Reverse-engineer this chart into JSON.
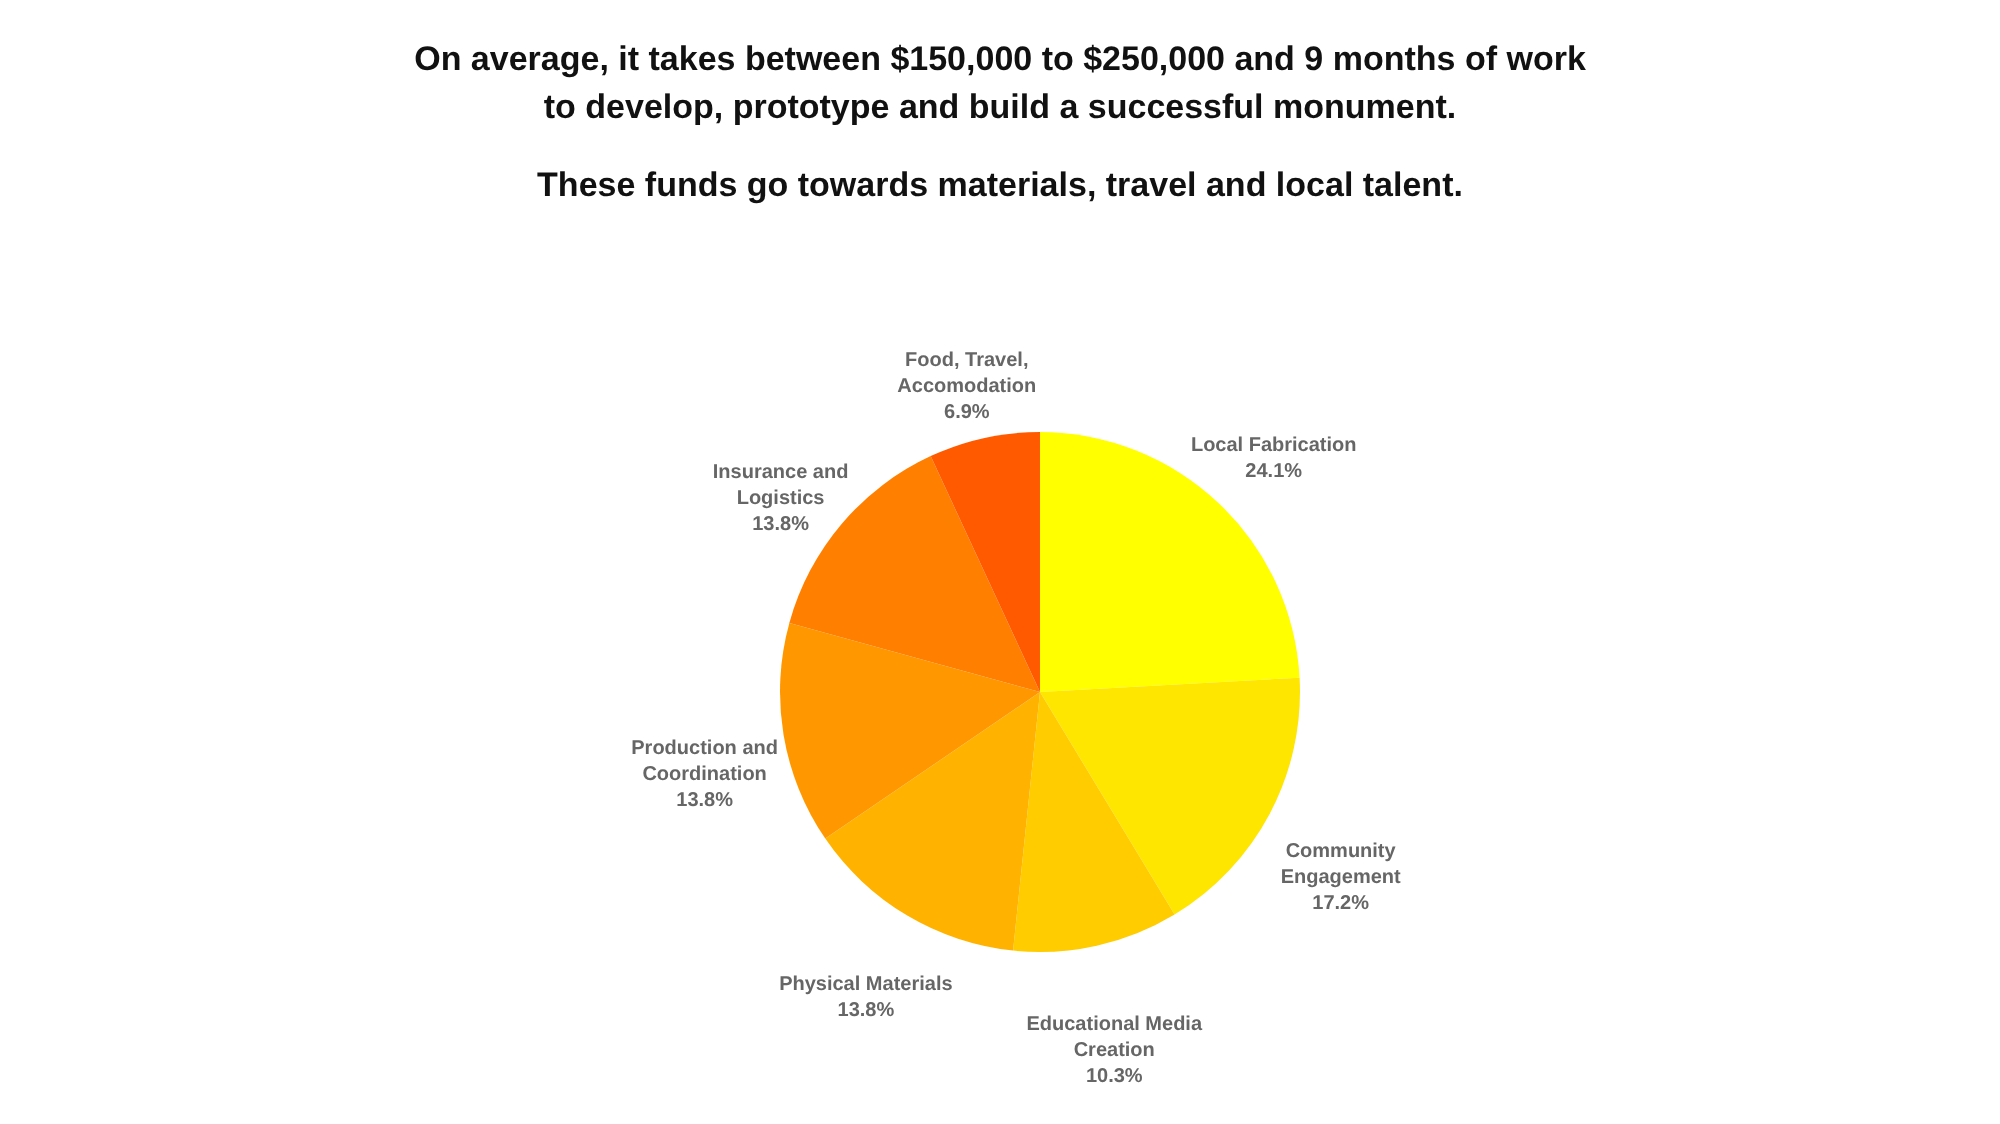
{
  "chart_data": {
    "type": "pie",
    "title": [
      "On average, it takes between $150,000 to $250,000 and 9 months of work",
      "to develop, prototype and build a successful monument."
    ],
    "subtitle": "These funds go towards materials, travel and local talent.",
    "categories": [
      "Local Fabrication",
      "Community Engagement",
      "Educational Media Creation",
      "Physical Materials",
      "Production and Coordination",
      "Insurance and Logistics",
      "Food, Travel, Accomodation"
    ],
    "values": [
      24.1,
      17.2,
      10.3,
      13.8,
      13.8,
      13.8,
      6.9
    ],
    "value_labels": [
      "24.1%",
      "17.2%",
      "10.3%",
      "13.8%",
      "13.8%",
      "13.8%",
      "6.9%"
    ],
    "colors": [
      "#ffff00",
      "#ffe600",
      "#ffcc00",
      "#ffb300",
      "#ff9800",
      "#ff7f00",
      "#ff5a00"
    ],
    "legend": false
  }
}
